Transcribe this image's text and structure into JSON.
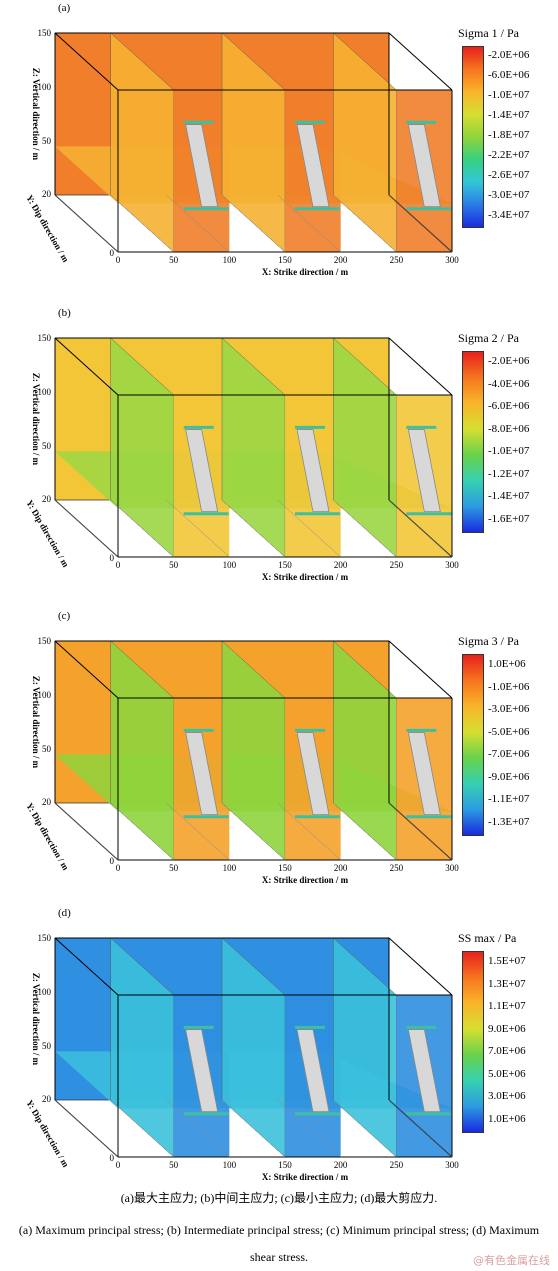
{
  "chart_data": [
    {
      "type": "heatmap",
      "panel_label": "(a)",
      "title": "Sigma 1 / Pa",
      "xlabel": "X: Strike  direction / m",
      "ylabel": "Y: Dip direction / m",
      "zlabel": "Z: Vertical direction / m",
      "xlim": [
        0,
        300
      ],
      "zlim": [
        0,
        150
      ],
      "x_ticks": [
        "0",
        "50",
        "100",
        "150",
        "200",
        "250",
        "300"
      ],
      "z_ticks": [
        "150",
        "100",
        "50",
        "20"
      ],
      "y_ticks": [
        "0"
      ],
      "legend_ticks": [
        "-2.0E+06",
        "-6.0E+06",
        "-1.0E+07",
        "-1.4E+07",
        "-1.8E+07",
        "-2.2E+07",
        "-2.6E+07",
        "-3.0E+07",
        "-3.4E+07"
      ],
      "legend_colors": [
        "#e8201c",
        "#f5761e",
        "#f9b52a",
        "#d6de32",
        "#8fd43c",
        "#36d07f",
        "#34c6d8",
        "#2a7de6",
        "#1a2be0"
      ],
      "dominant_color": "#f07e2a",
      "secondary_color": "#f6b132"
    },
    {
      "type": "heatmap",
      "panel_label": "(b)",
      "title": "Sigma 2 / Pa",
      "xlabel": "X: Strike  direction / m",
      "ylabel": "Y: Dip direction / m",
      "zlabel": "Z: Vertical direction / m",
      "xlim": [
        0,
        300
      ],
      "zlim": [
        0,
        150
      ],
      "x_ticks": [
        "0",
        "50",
        "100",
        "150",
        "200",
        "250",
        "300"
      ],
      "z_ticks": [
        "150",
        "100",
        "50",
        "20"
      ],
      "y_ticks": [
        "0"
      ],
      "legend_ticks": [
        "-2.0E+06",
        "-4.0E+06",
        "-6.0E+06",
        "-8.0E+06",
        "-1.0E+07",
        "-1.2E+07",
        "-1.4E+07",
        "-1.6E+07"
      ],
      "legend_colors": [
        "#e8201c",
        "#f5761e",
        "#f9b52a",
        "#d6de32",
        "#69d24a",
        "#36d0b0",
        "#2c9be2",
        "#1a2be0"
      ],
      "dominant_color": "#f3c638",
      "secondary_color": "#9cd744"
    },
    {
      "type": "heatmap",
      "panel_label": "(c)",
      "title": "Sigma 3 / Pa",
      "xlabel": "X: Strike  direction / m",
      "ylabel": "Y: Dip direction / m",
      "zlabel": "Z: Vertical direction / m",
      "xlim": [
        0,
        300
      ],
      "zlim": [
        0,
        150
      ],
      "x_ticks": [
        "0",
        "50",
        "100",
        "150",
        "200",
        "250",
        "300"
      ],
      "z_ticks": [
        "150",
        "100",
        "50",
        "20"
      ],
      "y_ticks": [
        "0"
      ],
      "legend_ticks": [
        "1.0E+06",
        "-1.0E+06",
        "-3.0E+06",
        "-5.0E+06",
        "-7.0E+06",
        "-9.0E+06",
        "-1.1E+07",
        "-1.3E+07"
      ],
      "legend_colors": [
        "#e8201c",
        "#f5761e",
        "#f9b52a",
        "#d6de32",
        "#69d24a",
        "#36d0b0",
        "#2c9be2",
        "#1a2be0"
      ],
      "dominant_color": "#f5a22c",
      "secondary_color": "#8fd43c"
    },
    {
      "type": "heatmap",
      "panel_label": "(d)",
      "title": "SS max / Pa",
      "xlabel": "X: Strike  direction / m",
      "ylabel": "Y: Dip direction / m",
      "zlabel": "Z: Vertical direction / m",
      "xlim": [
        0,
        300
      ],
      "zlim": [
        0,
        150
      ],
      "x_ticks": [
        "0",
        "50",
        "100",
        "150",
        "200",
        "250",
        "300"
      ],
      "z_ticks": [
        "150",
        "100",
        "50",
        "20"
      ],
      "y_ticks": [
        "0"
      ],
      "legend_ticks": [
        "1.5E+07",
        "1.3E+07",
        "1.1E+07",
        "9.0E+06",
        "7.0E+06",
        "5.0E+06",
        "3.0E+06",
        "1.0E+06"
      ],
      "legend_colors": [
        "#e8201c",
        "#f5761e",
        "#f9b52a",
        "#d6de32",
        "#69d24a",
        "#36d0b0",
        "#2c9be2",
        "#1a2be0"
      ],
      "dominant_color": "#2f8fe0",
      "secondary_color": "#3bc1dc"
    }
  ],
  "caption": {
    "zh": "(a)最大主应力; (b)中间主应力; (c)最小主应力; (d)最大剪应力.",
    "en": "(a) Maximum principal stress; (b) Intermediate principal stress; (c) Minimum principal stress; (d) Maximum shear stress."
  },
  "watermark": "@有色金属在线"
}
